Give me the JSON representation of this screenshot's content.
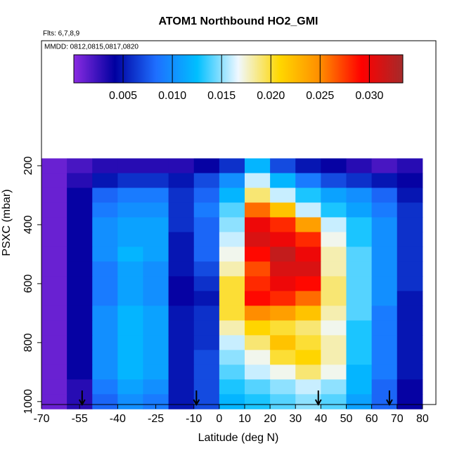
{
  "chart_data": {
    "type": "heatmap",
    "title": "ATOM1 Northbound HO2_GMI",
    "subtitle": "Flts: 6,7,8,9",
    "annotation": "MMDD: 0812,0815,0817,0820",
    "x_label": "Latitude (deg N)",
    "y_label": "PSXC (mbar)",
    "xlim": [
      -70,
      85.3
    ],
    "ylim": [
      1010,
      -224
    ],
    "xticks": [
      -70,
      -55,
      -40,
      -25,
      -10,
      0,
      10,
      20,
      30,
      40,
      50,
      60,
      70,
      80
    ],
    "yticks": [
      200,
      400,
      600,
      800,
      1000
    ],
    "x": [
      -65,
      -55,
      -45,
      -35,
      -25,
      -15,
      -5,
      5,
      15,
      25,
      35,
      45,
      55,
      65,
      75
    ],
    "y": [
      200,
      250,
      300,
      350,
      400,
      450,
      500,
      550,
      600,
      650,
      700,
      750,
      800,
      850,
      900,
      950,
      1000
    ],
    "values": [
      [
        0.001,
        0.002,
        0.003,
        0.003,
        0.003,
        0.003,
        0.004,
        0.006,
        0.012,
        0.007,
        0.005,
        0.004,
        0.003,
        0.002,
        0.003
      ],
      [
        0.001,
        0.003,
        0.005,
        0.006,
        0.006,
        0.005,
        0.007,
        0.01,
        0.016,
        0.012,
        0.009,
        0.007,
        0.006,
        0.005,
        0.004
      ],
      [
        0.001,
        0.004,
        0.008,
        0.009,
        0.009,
        0.006,
        0.008,
        0.012,
        0.019,
        0.016,
        0.013,
        0.011,
        0.01,
        0.008,
        0.005
      ],
      [
        0.001,
        0.004,
        0.009,
        0.01,
        0.01,
        0.006,
        0.009,
        0.014,
        0.026,
        0.022,
        0.016,
        0.013,
        0.011,
        0.009,
        0.006
      ],
      [
        0.001,
        0.004,
        0.01,
        0.011,
        0.011,
        0.006,
        0.008,
        0.015,
        0.03,
        0.028,
        0.024,
        0.016,
        0.013,
        0.01,
        0.006
      ],
      [
        0.001,
        0.004,
        0.01,
        0.011,
        0.011,
        0.005,
        0.008,
        0.016,
        0.031,
        0.03,
        0.028,
        0.017,
        0.013,
        0.01,
        0.006
      ],
      [
        0.001,
        0.004,
        0.01,
        0.012,
        0.011,
        0.005,
        0.008,
        0.017,
        0.029,
        0.032,
        0.03,
        0.018,
        0.014,
        0.01,
        0.006
      ],
      [
        0.001,
        0.004,
        0.009,
        0.011,
        0.01,
        0.005,
        0.007,
        0.018,
        0.027,
        0.031,
        0.031,
        0.018,
        0.014,
        0.01,
        0.006
      ],
      [
        0.001,
        0.004,
        0.009,
        0.011,
        0.01,
        0.004,
        0.006,
        0.02,
        0.028,
        0.03,
        0.029,
        0.019,
        0.014,
        0.01,
        0.006
      ],
      [
        0.001,
        0.004,
        0.009,
        0.011,
        0.01,
        0.004,
        0.005,
        0.02,
        0.029,
        0.028,
        0.026,
        0.019,
        0.014,
        0.01,
        0.005
      ],
      [
        0.001,
        0.004,
        0.01,
        0.012,
        0.011,
        0.005,
        0.006,
        0.02,
        0.025,
        0.024,
        0.022,
        0.018,
        0.014,
        0.009,
        0.005
      ],
      [
        0.001,
        0.004,
        0.01,
        0.012,
        0.011,
        0.005,
        0.006,
        0.018,
        0.021,
        0.02,
        0.019,
        0.017,
        0.013,
        0.009,
        0.005
      ],
      [
        0.001,
        0.004,
        0.01,
        0.012,
        0.011,
        0.005,
        0.006,
        0.016,
        0.019,
        0.022,
        0.02,
        0.018,
        0.013,
        0.009,
        0.005
      ],
      [
        0.001,
        0.004,
        0.01,
        0.012,
        0.011,
        0.005,
        0.007,
        0.015,
        0.017,
        0.02,
        0.021,
        0.018,
        0.013,
        0.009,
        0.005
      ],
      [
        0.001,
        0.004,
        0.01,
        0.012,
        0.011,
        0.005,
        0.007,
        0.014,
        0.016,
        0.017,
        0.019,
        0.017,
        0.012,
        0.009,
        0.005
      ],
      [
        0.001,
        0.003,
        0.009,
        0.011,
        0.01,
        0.005,
        0.007,
        0.013,
        0.014,
        0.015,
        0.016,
        0.015,
        0.012,
        0.008,
        0.004
      ],
      [
        0.001,
        0.003,
        0.008,
        0.01,
        0.009,
        0.005,
        0.007,
        0.012,
        0.013,
        0.014,
        0.015,
        0.014,
        0.011,
        0.008,
        0.004
      ]
    ],
    "colorbar_lim": [
      0,
      0.0334
    ],
    "colorbar_ticks": [
      0.005,
      {
        "value": 0.01,
        "label": "0.010"
      },
      0.015,
      {
        "value": 0.02,
        "label": "0.020"
      },
      0.025,
      {
        "value": 0.03,
        "label": "0.030"
      }
    ],
    "colormap": [
      "#8a2be2",
      "#0000a0",
      "#1e6fff",
      "#00bfff",
      "#f0f8ff",
      "#ffd700",
      "#ff8c00",
      "#ff0000",
      "#a52a2a"
    ],
    "markers": [
      -54,
      -9,
      39,
      67
    ]
  }
}
